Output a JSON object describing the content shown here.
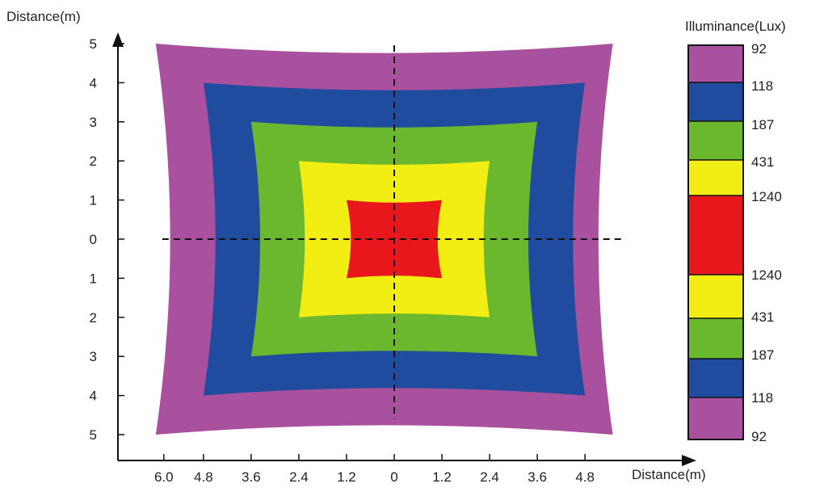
{
  "chart_data": {
    "type": "heatmap",
    "title": "",
    "ylabel": "Distance(m)",
    "xlabel": "Distance(m)",
    "legend_title": "Illuminance(Lux)",
    "x_ticks": [
      "6.0",
      "4.8",
      "3.6",
      "2.4",
      "1.2",
      "0",
      "1.2",
      "2.4",
      "3.6",
      "4.8"
    ],
    "y_ticks": [
      "5",
      "4",
      "3",
      "2",
      "1",
      "0",
      "1",
      "2",
      "3",
      "4",
      "5"
    ],
    "zones": [
      {
        "label": "92",
        "color": "#a9509f",
        "x_min": -6.0,
        "x_max": 5.5,
        "y_min": -5,
        "y_max": 5
      },
      {
        "label": "118",
        "color": "#1f4c9e",
        "x_min": -4.8,
        "x_max": 4.8,
        "y_min": -4,
        "y_max": 4
      },
      {
        "label": "187",
        "color": "#6bb82e",
        "x_min": -3.6,
        "x_max": 3.6,
        "y_min": -3,
        "y_max": 3
      },
      {
        "label": "431",
        "color": "#f2ee14",
        "x_min": -2.4,
        "x_max": 2.4,
        "y_min": -2,
        "y_max": 2
      },
      {
        "label": "1240",
        "color": "#e8171b",
        "x_min": -1.2,
        "x_max": 1.2,
        "y_min": -1,
        "y_max": 1
      }
    ],
    "legend": [
      {
        "label": "92",
        "color": "#a9509f"
      },
      {
        "label": "118",
        "color": "#1f4c9e"
      },
      {
        "label": "187",
        "color": "#6bb82e"
      },
      {
        "label": "431",
        "color": "#f2ee14"
      },
      {
        "label": "1240",
        "color": "#e8171b"
      },
      {
        "label": "1240",
        "color": "#f2ee14"
      },
      {
        "label": "431",
        "color": "#6bb82e"
      },
      {
        "label": "187",
        "color": "#1f4c9e"
      },
      {
        "label": "118",
        "color": "#a9509f"
      },
      {
        "label": "92",
        "color": ""
      }
    ],
    "legend_segments": [
      {
        "color": "#a9509f"
      },
      {
        "color": "#1f4c9e"
      },
      {
        "color": "#6bb82e"
      },
      {
        "color": "#f2ee14"
      },
      {
        "color": "#e8171b"
      },
      {
        "color": "#f2ee14"
      },
      {
        "color": "#6bb82e"
      },
      {
        "color": "#1f4c9e"
      },
      {
        "color": "#a9509f"
      }
    ]
  }
}
